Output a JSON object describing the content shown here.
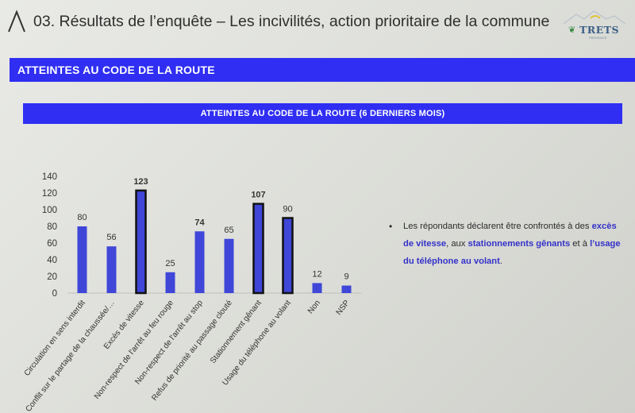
{
  "header": {
    "title": "03. Résultats de l’enquête – Les incivilités, action prioritaire de la commune",
    "brand_name": "TRETS",
    "brand_sub": "PROVENCE"
  },
  "section": {
    "title": "ATTEINTES AU CODE DE LA ROUTE"
  },
  "chart_banner": {
    "title": "ATTEINTES AU CODE DE LA ROUTE (6 DERNIERS MOIS)"
  },
  "chart_data": {
    "type": "bar",
    "categories": [
      "Circulation en sens interdit",
      "Conflit sur le partage de la chaussée/…",
      "Excès de vitesse",
      "Non-respect de l'arrêt au feu rouge",
      "Non-respect de l'arrêt au stop",
      "Refus de priorité au passage clouté",
      "Stationnement gênant",
      "Usage du téléphone au volant",
      "Non",
      "NSP"
    ],
    "values": [
      80,
      56,
      123,
      25,
      74,
      65,
      107,
      90,
      12,
      9
    ],
    "highlighted": [
      false,
      false,
      true,
      false,
      false,
      false,
      true,
      true,
      false,
      false
    ],
    "value_labels_bold": [
      false,
      false,
      true,
      false,
      true,
      false,
      true,
      false,
      false,
      false
    ],
    "ylim": [
      0,
      140
    ],
    "yticks": [
      0,
      20,
      40,
      60,
      80,
      100,
      120,
      140
    ],
    "colors": {
      "bar": "#3f46d8",
      "highlight_border": "#111111"
    }
  },
  "note": {
    "bullet": "•",
    "parts": [
      {
        "text": "Les répondants déclarent être confrontés à des ",
        "highlight": false
      },
      {
        "text": "excès de vitesse",
        "highlight": true
      },
      {
        "text": ", aux ",
        "highlight": false
      },
      {
        "text": "stationnements gênants",
        "highlight": true
      },
      {
        "text": " et à ",
        "highlight": false
      },
      {
        "text": "l’usage du téléphone au volant",
        "highlight": true
      },
      {
        "text": ".",
        "highlight": false
      }
    ]
  },
  "colors": {
    "accent": "#2f2ef2",
    "highlight_text": "#3432c8"
  }
}
